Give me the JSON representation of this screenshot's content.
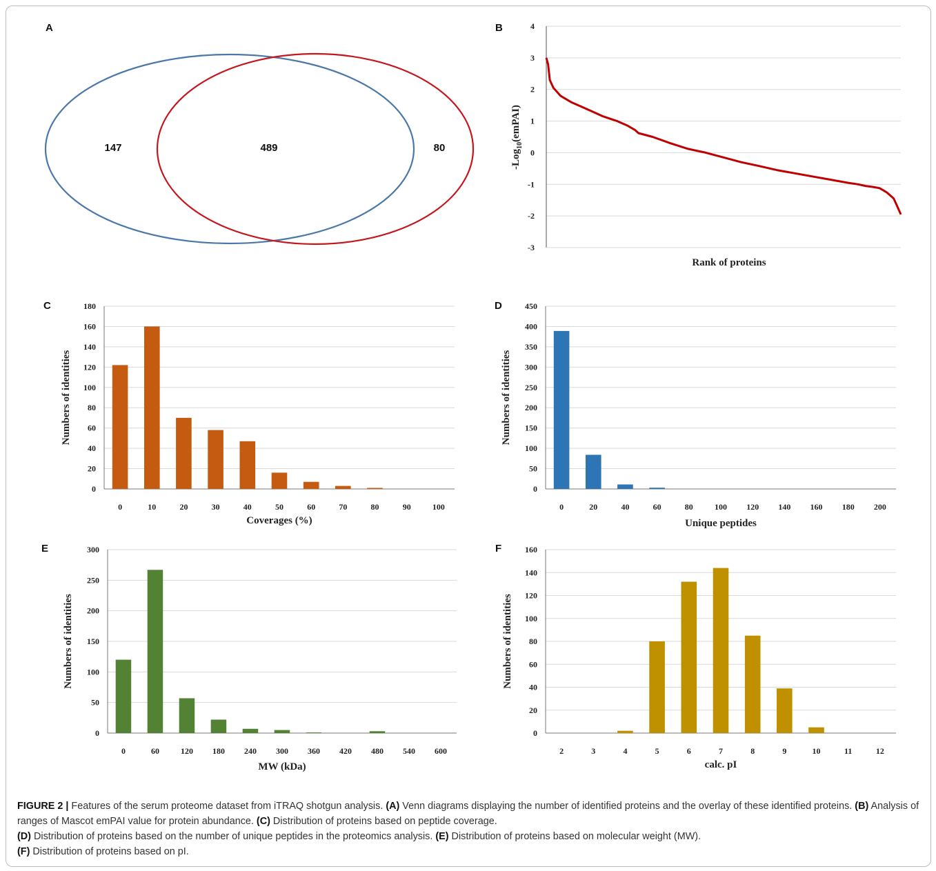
{
  "panels": {
    "a": {
      "label": "A",
      "venn": {
        "left_only": "147",
        "overlap": "489",
        "right_only": "80",
        "left_color": "#4a78a8",
        "right_color": "#c4161c"
      }
    },
    "b": {
      "label": "B"
    },
    "c": {
      "label": "C"
    },
    "d": {
      "label": "D"
    },
    "e": {
      "label": "E"
    },
    "f": {
      "label": "F"
    }
  },
  "caption": {
    "fig_label": "FIGURE 2 |",
    "intro": " Features of the serum proteome dataset from iTRAQ shotgun analysis. ",
    "a_tag": "(A)",
    "a_text": " Venn diagrams displaying the number of identified proteins and the overlay of these identified proteins. ",
    "b_tag": "(B)",
    "b_text": " Analysis of ranges of Mascot emPAI value for protein abundance. ",
    "c_tag": "(C)",
    "c_text": " Distribution of proteins based on peptide coverage.",
    "d_tag": "(D)",
    "d_text": " Distribution of proteins based on the number of unique peptides in the proteomics analysis. ",
    "e_tag": "(E)",
    "e_text": " Distribution of proteins based on molecular weight (MW).",
    "f_tag": "(F)",
    "f_text": " Distribution of proteins based on pI."
  },
  "chart_data": [
    {
      "id": "b",
      "type": "line",
      "ylabel": "-Log10(emPAI)",
      "xlabel": "Rank of proteins",
      "ylim": [
        -3,
        4
      ],
      "yticks": [
        4,
        3,
        2,
        1,
        0,
        -1,
        -2,
        -3
      ],
      "grid": true,
      "color": "#c00000",
      "series": [
        {
          "x": [
            0,
            0.005,
            0.01,
            0.02,
            0.04,
            0.07,
            0.1,
            0.13,
            0.16,
            0.2,
            0.23,
            0.25,
            0.26,
            0.3,
            0.35,
            0.4,
            0.45,
            0.5,
            0.55,
            0.6,
            0.65,
            0.7,
            0.75,
            0.8,
            0.85,
            0.88,
            0.9,
            0.92,
            0.94,
            0.96,
            0.98,
            0.99,
            1.0
          ],
          "y": [
            3.0,
            2.8,
            2.3,
            2.05,
            1.8,
            1.6,
            1.45,
            1.3,
            1.15,
            1.0,
            0.85,
            0.72,
            0.62,
            0.5,
            0.3,
            0.12,
            0.0,
            -0.15,
            -0.3,
            -0.42,
            -0.55,
            -0.65,
            -0.75,
            -0.85,
            -0.95,
            -1.0,
            -1.05,
            -1.08,
            -1.12,
            -1.25,
            -1.45,
            -1.7,
            -1.95
          ]
        }
      ]
    },
    {
      "id": "c",
      "type": "bar",
      "ylabel": "Numbers of identities",
      "xlabel": "Coverages (%)",
      "categories": [
        "0",
        "10",
        "20",
        "30",
        "40",
        "50",
        "60",
        "70",
        "80",
        "90",
        "100"
      ],
      "values": [
        122,
        160,
        70,
        58,
        47,
        16,
        7,
        3,
        1,
        0,
        0
      ],
      "ylim": [
        0,
        180
      ],
      "yticks": [
        0,
        20,
        40,
        60,
        80,
        100,
        120,
        140,
        160,
        180
      ],
      "grid": true,
      "color": "#c55a11"
    },
    {
      "id": "d",
      "type": "bar",
      "ylabel": "Numbers of identities",
      "xlabel": "Unique peptides",
      "categories": [
        "0",
        "20",
        "40",
        "60",
        "80",
        "100",
        "120",
        "140",
        "160",
        "180",
        "200"
      ],
      "values": [
        389,
        84,
        11,
        3,
        0,
        0,
        0,
        0,
        0,
        0,
        0
      ],
      "ylim": [
        0,
        450
      ],
      "yticks": [
        0,
        50,
        100,
        150,
        200,
        250,
        300,
        350,
        400,
        450
      ],
      "grid": true,
      "color": "#2e75b6"
    },
    {
      "id": "e",
      "type": "bar",
      "ylabel": "Numbers of identities",
      "xlabel": "MW (kDa)",
      "categories": [
        "0",
        "60",
        "120",
        "180",
        "240",
        "300",
        "360",
        "420",
        "480",
        "540",
        "600"
      ],
      "values": [
        120,
        267,
        57,
        22,
        7,
        5,
        1,
        0,
        3,
        0,
        0
      ],
      "ylim": [
        0,
        300
      ],
      "yticks": [
        0,
        50,
        100,
        150,
        200,
        250,
        300
      ],
      "grid": true,
      "color": "#548235"
    },
    {
      "id": "f",
      "type": "bar",
      "ylabel": "Numbers of identities",
      "xlabel": "calc. pI",
      "categories": [
        "2",
        "3",
        "4",
        "5",
        "6",
        "7",
        "8",
        "9",
        "10",
        "11",
        "12"
      ],
      "values": [
        0,
        0,
        2,
        80,
        132,
        144,
        85,
        39,
        5,
        0,
        0
      ],
      "ylim": [
        0,
        160
      ],
      "yticks": [
        0,
        20,
        40,
        60,
        80,
        100,
        120,
        140,
        160
      ],
      "grid": true,
      "color": "#bf9000"
    }
  ]
}
